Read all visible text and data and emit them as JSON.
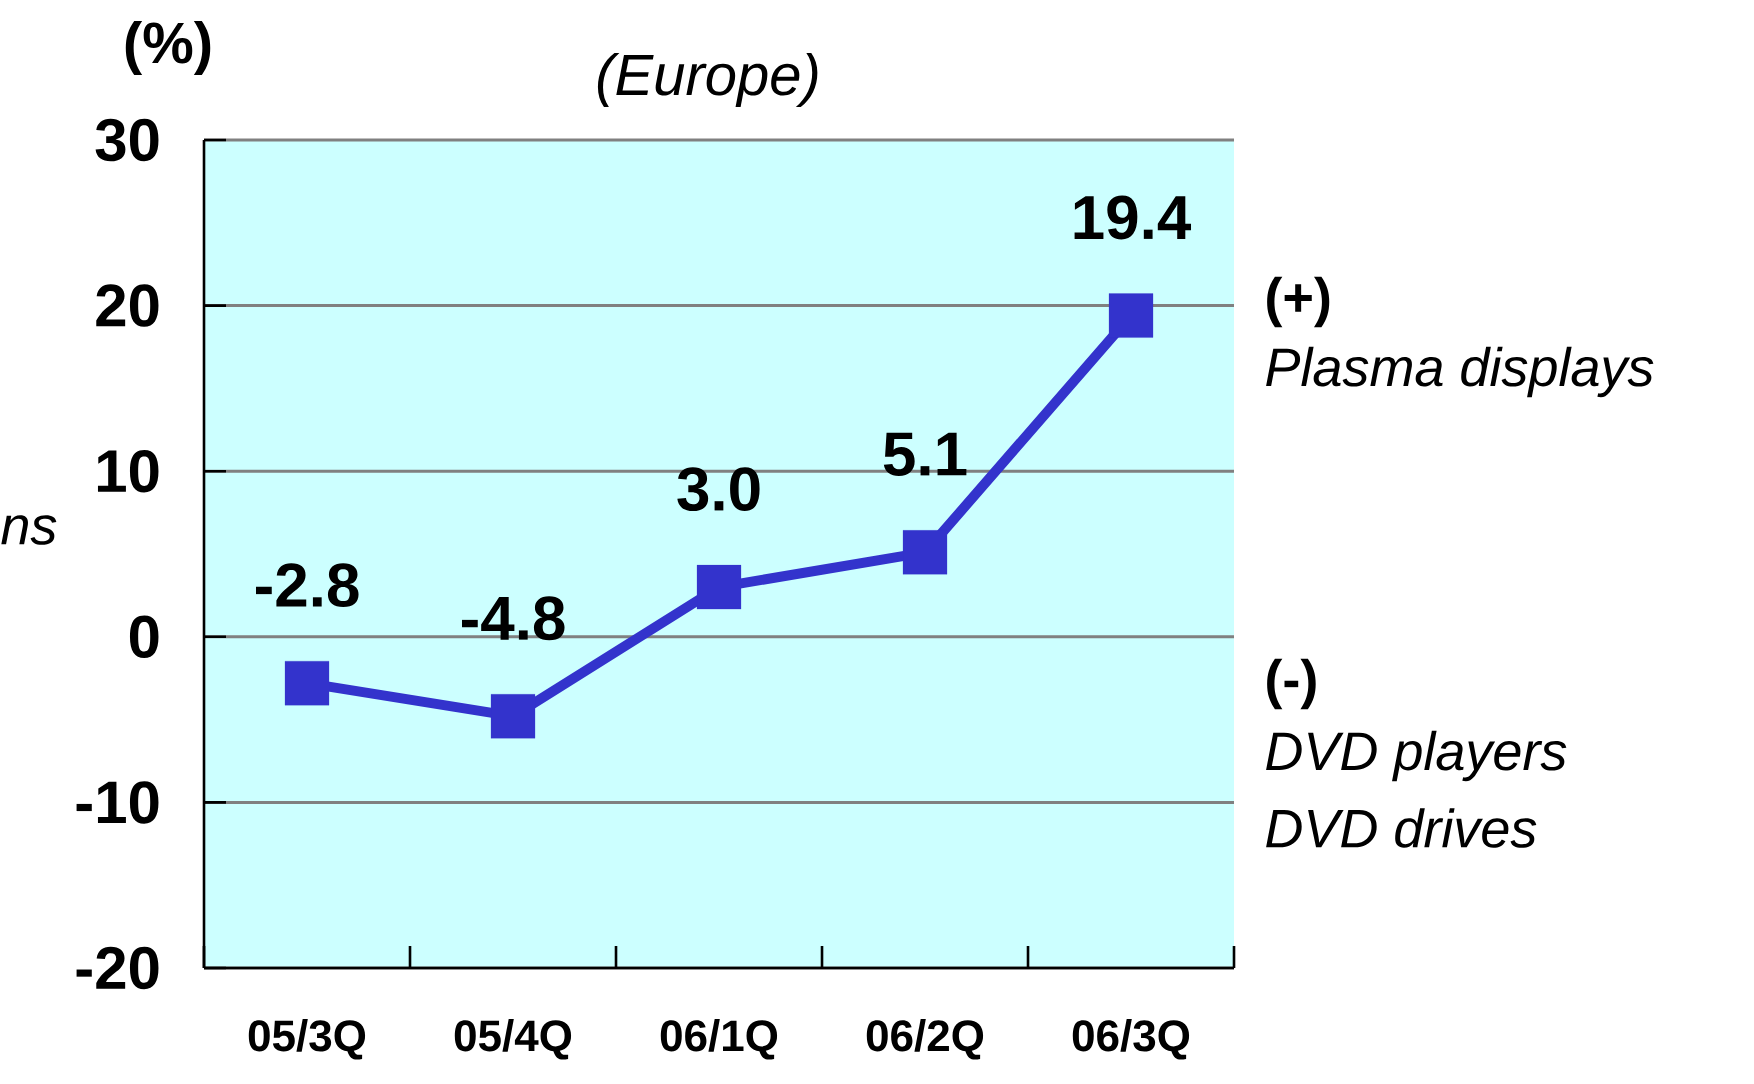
{
  "chart_data": {
    "type": "line",
    "title": "(Europe)",
    "ylabel": "(%)",
    "categories": [
      "05/3Q",
      "05/4Q",
      "06/1Q",
      "06/2Q",
      "06/3Q"
    ],
    "series": [
      {
        "color": "#3333cc",
        "values": [
          -2.8,
          -4.8,
          3.0,
          5.1,
          19.4
        ],
        "value_labels": [
          "-2.8",
          "-4.8",
          "3.0",
          "5.1",
          "19.4"
        ]
      }
    ],
    "ylim": [
      -20,
      30
    ],
    "yticks": [
      -20,
      -10,
      0,
      10,
      20,
      30
    ],
    "grid": "y",
    "marker": "square",
    "line_style": "solid",
    "annotations": [
      "ns",
      "(+)",
      "Plasma displays",
      "(-)",
      "DVD players",
      "DVD drives"
    ]
  }
}
